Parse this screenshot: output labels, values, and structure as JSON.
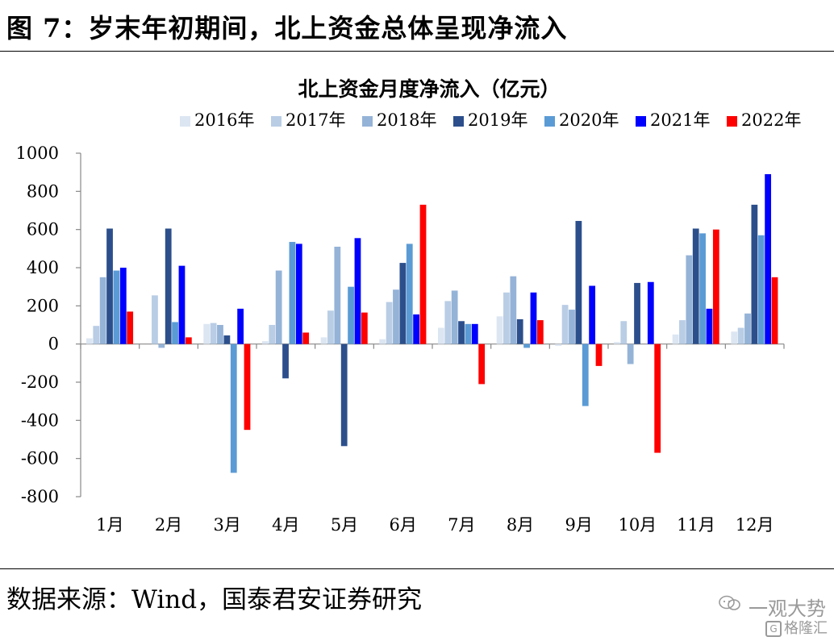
{
  "figure_title": "图 7：岁末年初期间，北上资金总体呈现净流入",
  "source": "数据来源：Wind，国泰君安证券研究",
  "watermark": {
    "line1": "一观大势",
    "line2": "格隆汇",
    "logo_letter": "G"
  },
  "colors": {
    "2016年": "#dce6f2",
    "2017年": "#b9cde5",
    "2018年": "#95b3d7",
    "2019年": "#2c4f8c",
    "2020年": "#5b9bd5",
    "2021年": "#0000ff",
    "2022年": "#ff0000"
  },
  "chart_data": {
    "type": "bar",
    "title": "北上资金月度净流入（亿元）",
    "legend_position": "top",
    "grid": false,
    "ylim": [
      -800,
      1000
    ],
    "yticks": [
      "1000",
      "800",
      "600",
      "400",
      "200",
      "0",
      "-200",
      "-400",
      "-600",
      "-800"
    ],
    "categories": [
      "1月",
      "2月",
      "3月",
      "4月",
      "5月",
      "6月",
      "7月",
      "8月",
      "9月",
      "10月",
      "11月",
      "12月"
    ],
    "series": [
      {
        "name": "2016年",
        "values": [
          30,
          0,
          105,
          15,
          35,
          25,
          85,
          145,
          -10,
          10,
          50,
          65
        ]
      },
      {
        "name": "2017年",
        "values": [
          95,
          255,
          110,
          100,
          175,
          220,
          225,
          270,
          205,
          120,
          125,
          85
        ]
      },
      {
        "name": "2018年",
        "values": [
          350,
          -20,
          100,
          385,
          510,
          285,
          280,
          355,
          180,
          -105,
          465,
          160
        ]
      },
      {
        "name": "2019年",
        "values": [
          605,
          605,
          45,
          -180,
          -535,
          425,
          120,
          130,
          645,
          320,
          605,
          730
        ]
      },
      {
        "name": "2020年",
        "values": [
          385,
          115,
          -675,
          535,
          300,
          525,
          105,
          -20,
          -325,
          0,
          580,
          570
        ]
      },
      {
        "name": "2021年",
        "values": [
          400,
          410,
          185,
          525,
          555,
          155,
          105,
          270,
          305,
          325,
          185,
          890
        ]
      },
      {
        "name": "2022年",
        "values": [
          170,
          35,
          -450,
          60,
          165,
          730,
          -210,
          125,
          -115,
          -570,
          600,
          350
        ]
      }
    ]
  }
}
